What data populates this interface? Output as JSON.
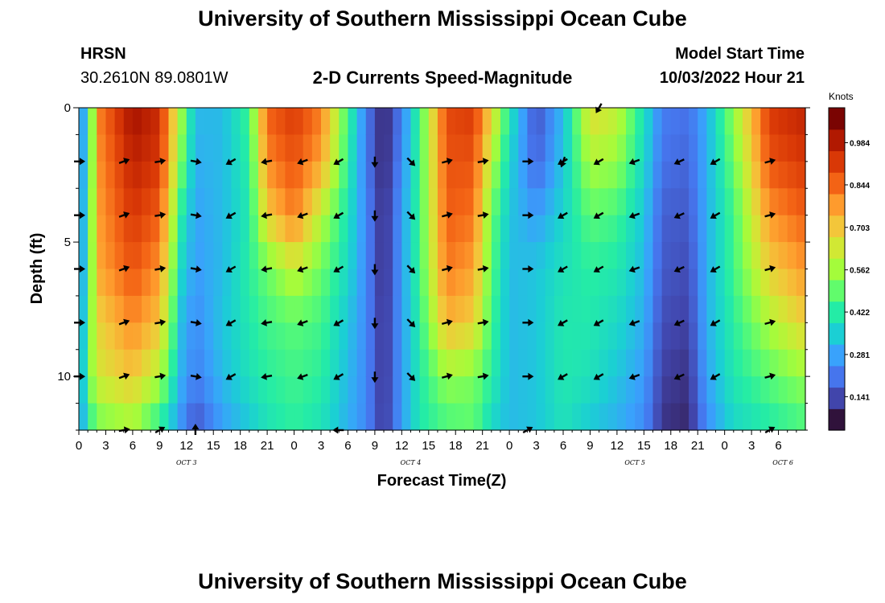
{
  "header": {
    "title": "University of Southern Mississippi Ocean Cube",
    "station": "HRSN",
    "coords": "30.2610N  89.0801W",
    "subtitle": "2-D Currents Speed-Magnitude",
    "model_label": "Model Start Time",
    "model_start": "10/03/2022 Hour 21"
  },
  "footer": {
    "title": "University of Southern Mississippi Ocean Cube"
  },
  "colors": {
    "scale": [
      "#30123b",
      "#4145ab",
      "#4675ed",
      "#39a2fc",
      "#1bcfd4",
      "#24eca6",
      "#61fc6c",
      "#a4fc3b",
      "#d1e834",
      "#f3c63a",
      "#fe9b2d",
      "#f36315",
      "#d93806",
      "#b11901",
      "#7a0402"
    ],
    "arrow": "#000000"
  },
  "chart_data": {
    "type": "heatmap",
    "title": "2-D Currents Speed-Magnitude",
    "xlabel": "Forecast Time(Z)",
    "ylabel": "Depth (ft)",
    "colorbar_label": "Knots",
    "colorbar_ticks": [
      "0.984",
      "0.844",
      "0.703",
      "0.562",
      "0.422",
      "0.281",
      "0.141"
    ],
    "colorbar_tick_values": [
      0.984,
      0.844,
      0.703,
      0.562,
      0.422,
      0.281,
      0.141
    ],
    "value_range": [
      0.03,
      1.1
    ],
    "hours_total": 81,
    "xlim": [
      0,
      81
    ],
    "ylim": [
      0,
      12
    ],
    "x_tick_labels": [
      "0",
      "3",
      "6",
      "9",
      "12",
      "15",
      "18",
      "21",
      "0",
      "3",
      "6",
      "9",
      "12",
      "15",
      "18",
      "21",
      "0",
      "3",
      "6",
      "9",
      "12",
      "15",
      "18",
      "21",
      "0",
      "3",
      "6"
    ],
    "y_tick_labels": [
      "0",
      "5",
      "10"
    ],
    "y_tick_values": [
      0,
      5,
      10
    ],
    "day_labels": [
      {
        "label": "OCT 3",
        "hour": 12
      },
      {
        "label": "OCT 4",
        "hour": 37
      },
      {
        "label": "OCT 5",
        "hour": 62
      },
      {
        "label": "OCT 6",
        "hour": 78.5
      }
    ],
    "depth_levels": [
      0,
      2,
      4,
      6,
      8,
      10,
      12
    ],
    "speed_keyframes": [
      {
        "hour": 0,
        "values": [
          0.15,
          0.15,
          0.15,
          0.15,
          0.15,
          0.17,
          0.2
        ]
      },
      {
        "hour": 1,
        "values": [
          0.4,
          0.42,
          0.45,
          0.45,
          0.5,
          0.52,
          0.4
        ]
      },
      {
        "hour": 2.5,
        "values": [
          0.85,
          0.82,
          0.8,
          0.78,
          0.7,
          0.65,
          0.5
        ]
      },
      {
        "hour": 6,
        "values": [
          1.05,
          1.0,
          0.95,
          0.9,
          0.82,
          0.72,
          0.55
        ]
      },
      {
        "hour": 9,
        "values": [
          0.98,
          0.95,
          0.88,
          0.8,
          0.72,
          0.58,
          0.4
        ]
      },
      {
        "hour": 11.5,
        "values": [
          0.55,
          0.5,
          0.4,
          0.35,
          0.3,
          0.28,
          0.22
        ]
      },
      {
        "hour": 13,
        "values": [
          0.3,
          0.28,
          0.26,
          0.25,
          0.22,
          0.2,
          0.12
        ]
      },
      {
        "hour": 16,
        "values": [
          0.3,
          0.3,
          0.3,
          0.3,
          0.32,
          0.3,
          0.25
        ]
      },
      {
        "hour": 19,
        "values": [
          0.45,
          0.42,
          0.4,
          0.42,
          0.4,
          0.38,
          0.32
        ]
      },
      {
        "hour": 21,
        "values": [
          0.88,
          0.82,
          0.7,
          0.5,
          0.45,
          0.42,
          0.38
        ]
      },
      {
        "hour": 24,
        "values": [
          0.95,
          0.9,
          0.84,
          0.62,
          0.48,
          0.45,
          0.42
        ]
      },
      {
        "hour": 27,
        "values": [
          0.84,
          0.78,
          0.6,
          0.5,
          0.45,
          0.42,
          0.38
        ]
      },
      {
        "hour": 30,
        "values": [
          0.45,
          0.42,
          0.38,
          0.36,
          0.32,
          0.3,
          0.28
        ]
      },
      {
        "hour": 32,
        "values": [
          0.2,
          0.2,
          0.22,
          0.22,
          0.22,
          0.22,
          0.22
        ]
      },
      {
        "hour": 34,
        "values": [
          0.05,
          0.05,
          0.06,
          0.06,
          0.07,
          0.07,
          0.08
        ]
      },
      {
        "hour": 36,
        "values": [
          0.2,
          0.22,
          0.25,
          0.25,
          0.25,
          0.25,
          0.25
        ]
      },
      {
        "hour": 38,
        "values": [
          0.45,
          0.45,
          0.45,
          0.45,
          0.42,
          0.4,
          0.4
        ]
      },
      {
        "hour": 41,
        "values": [
          0.92,
          0.9,
          0.88,
          0.84,
          0.75,
          0.55,
          0.45
        ]
      },
      {
        "hour": 44,
        "values": [
          0.95,
          0.9,
          0.85,
          0.78,
          0.7,
          0.52,
          0.48
        ]
      },
      {
        "hour": 46,
        "values": [
          0.7,
          0.6,
          0.5,
          0.48,
          0.45,
          0.42,
          0.35
        ]
      },
      {
        "hour": 48,
        "values": [
          0.4,
          0.35,
          0.32,
          0.3,
          0.3,
          0.3,
          0.3
        ]
      },
      {
        "hour": 51,
        "values": [
          0.12,
          0.15,
          0.25,
          0.32,
          0.32,
          0.32,
          0.32
        ]
      },
      {
        "hour": 54,
        "values": [
          0.3,
          0.32,
          0.35,
          0.38,
          0.4,
          0.4,
          0.38
        ]
      },
      {
        "hour": 57,
        "values": [
          0.68,
          0.58,
          0.48,
          0.42,
          0.4,
          0.38,
          0.32
        ]
      },
      {
        "hour": 60,
        "values": [
          0.62,
          0.55,
          0.45,
          0.4,
          0.36,
          0.32,
          0.28
        ]
      },
      {
        "hour": 63,
        "values": [
          0.38,
          0.36,
          0.32,
          0.3,
          0.28,
          0.25,
          0.22
        ]
      },
      {
        "hour": 65,
        "values": [
          0.2,
          0.18,
          0.15,
          0.14,
          0.12,
          0.1,
          0.08
        ]
      },
      {
        "hour": 68,
        "values": [
          0.18,
          0.16,
          0.14,
          0.12,
          0.1,
          0.08,
          0.06
        ]
      },
      {
        "hour": 70,
        "values": [
          0.28,
          0.28,
          0.28,
          0.28,
          0.28,
          0.26,
          0.22
        ]
      },
      {
        "hour": 73,
        "values": [
          0.55,
          0.5,
          0.45,
          0.45,
          0.42,
          0.4,
          0.35
        ]
      },
      {
        "hour": 77,
        "values": [
          0.95,
          0.9,
          0.8,
          0.7,
          0.58,
          0.48,
          0.4
        ]
      },
      {
        "hour": 81,
        "values": [
          1.0,
          0.95,
          0.88,
          0.8,
          0.7,
          0.55,
          0.45
        ]
      }
    ],
    "arrow_rows_depth": [
      2,
      4,
      6,
      8,
      10
    ],
    "arrow_columns": [
      {
        "hour": 0,
        "dir": 90
      },
      {
        "hour": 5,
        "dir": 70
      },
      {
        "hour": 9,
        "dir": 80
      },
      {
        "hour": 13,
        "dir": 100
      },
      {
        "hour": 17,
        "dir": 240
      },
      {
        "hour": 21,
        "dir": 260
      },
      {
        "hour": 25,
        "dir": 250
      },
      {
        "hour": 29,
        "dir": 240
      },
      {
        "hour": 33,
        "dir": 180
      },
      {
        "hour": 37,
        "dir": 135
      },
      {
        "hour": 41,
        "dir": 75
      },
      {
        "hour": 45,
        "dir": 80
      },
      {
        "hour": 50,
        "dir": 90
      },
      {
        "hour": 54,
        "dir": 240
      },
      {
        "hour": 58,
        "dir": 240
      },
      {
        "hour": 62,
        "dir": 250
      },
      {
        "hour": 67,
        "dir": 245
      },
      {
        "hour": 71,
        "dir": 240
      },
      {
        "hour": 77,
        "dir": 75
      }
    ],
    "arrow_extra": [
      {
        "hour": 5,
        "depth": 12,
        "dir": 80
      },
      {
        "hour": 9,
        "depth": 12,
        "dir": 60
      },
      {
        "hour": 13,
        "depth": 12,
        "dir": 0
      },
      {
        "hour": 29,
        "depth": 12,
        "dir": 270
      },
      {
        "hour": 50,
        "depth": 12,
        "dir": 60
      },
      {
        "hour": 77,
        "depth": 12,
        "dir": 60
      },
      {
        "hour": 54,
        "depth": 2,
        "dir": 200
      },
      {
        "hour": 58,
        "depth": 0,
        "dir": 210
      }
    ]
  }
}
